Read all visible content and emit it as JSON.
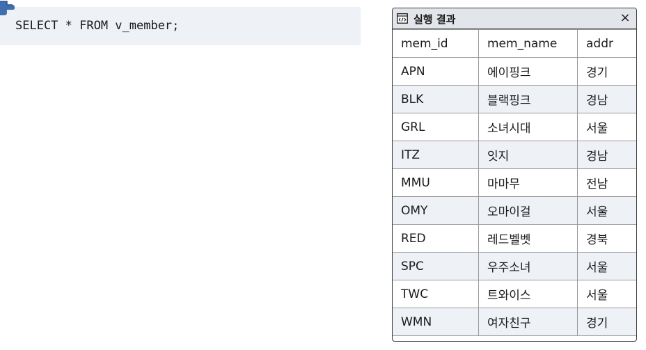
{
  "query": {
    "sql": "SELECT * FROM v_member;",
    "pointer_icon": "hand-pointer-icon"
  },
  "result_window": {
    "title": "실행 결과",
    "title_icon": "code-window-icon",
    "close_label": "×",
    "columns": [
      "mem_id",
      "mem_name",
      "addr"
    ],
    "rows": [
      [
        "APN",
        "에이핑크",
        "경기"
      ],
      [
        "BLK",
        "블랙핑크",
        "경남"
      ],
      [
        "GRL",
        "소녀시대",
        "서울"
      ],
      [
        "ITZ",
        "잇지",
        "경남"
      ],
      [
        "MMU",
        "마마무",
        "전남"
      ],
      [
        "OMY",
        "오마이걸",
        "서울"
      ],
      [
        "RED",
        "레드벨벳",
        "경북"
      ],
      [
        "SPC",
        "우주소녀",
        "서울"
      ],
      [
        "TWC",
        "트와이스",
        "서울"
      ],
      [
        "WMN",
        "여자친구",
        "경기"
      ]
    ]
  },
  "colors": {
    "code_background": "#eef1f6",
    "titlebar_background": "#e2e5ea",
    "alt_row_background": "#eef1f6",
    "pointer_blue": "#3f6fb0"
  }
}
